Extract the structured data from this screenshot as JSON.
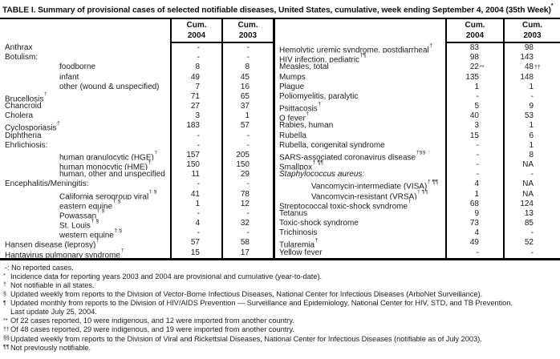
{
  "colors": {
    "background": "#ffffff",
    "ink": "#000000"
  },
  "title": {
    "text": "TABLE I. Summary of provisional cases of selected notifiable diseases, United States, cumulative, week ending September 4, 2004 (35th Week)",
    "sup": "*"
  },
  "tables": [
    {
      "id": "left",
      "header": {
        "col1": [
          "Cum.",
          "2004"
        ],
        "col2": [
          "Cum.",
          "2003"
        ]
      },
      "rows": [
        {
          "label": "Anthrax",
          "v2004": "-",
          "v2003": "-"
        },
        {
          "label": "Botulism:",
          "v2004": "-",
          "v2003": "-"
        },
        {
          "label": "foodborne",
          "indent": true,
          "v2004": "8",
          "v2003": "8"
        },
        {
          "label": "infant",
          "indent": true,
          "v2004": "49",
          "v2003": "45"
        },
        {
          "label": "other (wound & unspecified)",
          "indent": true,
          "v2004": "7",
          "v2003": "16"
        },
        {
          "label": "Brucellosis",
          "sup": "†",
          "v2004": "71",
          "v2003": "65"
        },
        {
          "label": "Chancroid",
          "v2004": "27",
          "v2003": "37"
        },
        {
          "label": "Cholera",
          "v2004": "3",
          "v2003": "1"
        },
        {
          "label": "Cyclosporiasis",
          "sup": "†",
          "v2004": "183",
          "v2003": "57"
        },
        {
          "label": "Diphtheria",
          "v2004": "-",
          "v2003": "-"
        },
        {
          "label": "Ehrlichiosis:",
          "v2004": "-",
          "v2003": "-"
        },
        {
          "label": "human granulocytic (HGE)",
          "sup": "†",
          "indent": true,
          "v2004": "157",
          "v2003": "205"
        },
        {
          "label": "human monocytic (HME)",
          "sup": "†",
          "indent": true,
          "v2004": "150",
          "v2003": "150"
        },
        {
          "label": "human, other and unspecified",
          "indent": true,
          "v2004": "11",
          "v2003": "29"
        },
        {
          "label": "Encephalitis/Meningitis:",
          "v2004": "-",
          "v2003": "-"
        },
        {
          "label": "California serogroup viral",
          "sup": "† §",
          "indent": true,
          "v2004": "41",
          "v2003": "78"
        },
        {
          "label": "eastern equine",
          "sup": "† §",
          "indent": true,
          "v2004": "1",
          "v2003": "12"
        },
        {
          "label": "Powassan",
          "sup": "† §",
          "indent": true,
          "v2004": "-",
          "v2003": "-"
        },
        {
          "label": "St. Louis",
          "sup": "† §",
          "indent": true,
          "v2004": "4",
          "v2003": "32"
        },
        {
          "label": "western equine",
          "sup": "† §",
          "indent": true,
          "v2004": "-",
          "v2003": "-"
        },
        {
          "label": "Hansen disease (leprosy)",
          "sup": "†",
          "v2004": "57",
          "v2003": "58"
        },
        {
          "label": "Hantavirus pulmonary syndrome",
          "sup": "†",
          "v2004": "15",
          "v2003": "17"
        }
      ]
    },
    {
      "id": "right",
      "header": {
        "col1": [
          "Cum.",
          "2004"
        ],
        "col2": [
          "Cum.",
          "2003"
        ]
      },
      "rows": [
        {
          "label": "Hemolytic uremic syndrome, postdiarrheal",
          "sup": "†",
          "v2004": "83",
          "v2003": "98"
        },
        {
          "label": "HIV infection, pediatric",
          "sup": "†¶",
          "v2004": "98",
          "v2003": "143"
        },
        {
          "label": "Measles, total",
          "v2004": "22",
          "s2004": "**",
          "v2003": "48",
          "s2003": "††"
        },
        {
          "label": "Mumps",
          "v2004": "135",
          "v2003": "148"
        },
        {
          "label": "Plague",
          "v2004": "1",
          "v2003": "1"
        },
        {
          "label": "Poliomyelitis, paralytic",
          "v2004": "-",
          "v2003": "-"
        },
        {
          "label": "Psittacosis",
          "sup": "†",
          "v2004": "5",
          "v2003": "9"
        },
        {
          "label": "Q fever",
          "sup": "†",
          "v2004": "40",
          "v2003": "53"
        },
        {
          "label": "Rabies, human",
          "v2004": "3",
          "v2003": "1"
        },
        {
          "label": "Rubella",
          "v2004": "15",
          "v2003": "6"
        },
        {
          "label": "Rubella, congenital syndrome",
          "v2004": "-",
          "v2003": "1"
        },
        {
          "label": "SARS-associated coronavirus disease",
          "sup": "†§§",
          "v2004": "-",
          "v2003": "8"
        },
        {
          "label": "Smallpox",
          "sup": "† ¶¶",
          "v2004": "-",
          "v2003": "NA"
        },
        {
          "label": "Staphylococcus aureus:",
          "italic": true,
          "v2004": "-",
          "v2003": "-"
        },
        {
          "label": "Vancomycin-intermediate (VISA)",
          "sup": "† ¶¶",
          "indent": true,
          "v2004": "4",
          "v2003": "NA"
        },
        {
          "label": "Vancomycin-resistant (VRSA)",
          "sup": "† ¶¶",
          "indent": true,
          "v2004": "1",
          "v2003": "NA"
        },
        {
          "label": "Streptococcal toxic-shock syndrome",
          "sup": "†",
          "v2004": "68",
          "v2003": "124"
        },
        {
          "label": "Tetanus",
          "v2004": "9",
          "v2003": "13"
        },
        {
          "label": "Toxic-shock syndrome",
          "v2004": "73",
          "v2003": "85"
        },
        {
          "label": "Trichinosis",
          "v2004": "4",
          "v2003": "-"
        },
        {
          "label": "Tularemia",
          "sup": "†",
          "v2004": "49",
          "v2003": "52"
        },
        {
          "label": "Yellow fever",
          "v2004": "-",
          "v2003": "-"
        }
      ]
    }
  ],
  "footnotes": [
    {
      "marker": "",
      "text": "-: No reported cases."
    },
    {
      "marker": "*",
      "text": "Incidence data for reporting years 2003 and 2004 are provisional and cumulative (year-to-date)."
    },
    {
      "marker": "†",
      "text": "Not notifiable in all states."
    },
    {
      "marker": "§",
      "text": "Updated weekly from reports to the Division of Vector-Borne Infectious Diseases, National Center for Infectious Diseases (ArboNet Surveillance)."
    },
    {
      "marker": "¶",
      "text": "Updated monthly from reports to the Division of HIV/AIDS Prevention — Surveillance and Epidemiology, National Center for HIV, STD, and TB Prevention."
    },
    {
      "marker": "",
      "text": "Last update July 25, 2004."
    },
    {
      "marker": "**",
      "text": "Of 22 cases reported, 10 were indigenous, and 12 were imported from another country."
    },
    {
      "marker": "††",
      "text": "Of 48 cases reported, 29 were indigenous, and 19 were imported from another country."
    },
    {
      "marker": "§§",
      "text": "Updated weekly from reports to the Division of Viral and Rickettsial Diseases, National Center for Infectious Diseases (notifiable as of July 2003)."
    },
    {
      "marker": "¶¶",
      "text": "Not previously notifiable."
    }
  ]
}
